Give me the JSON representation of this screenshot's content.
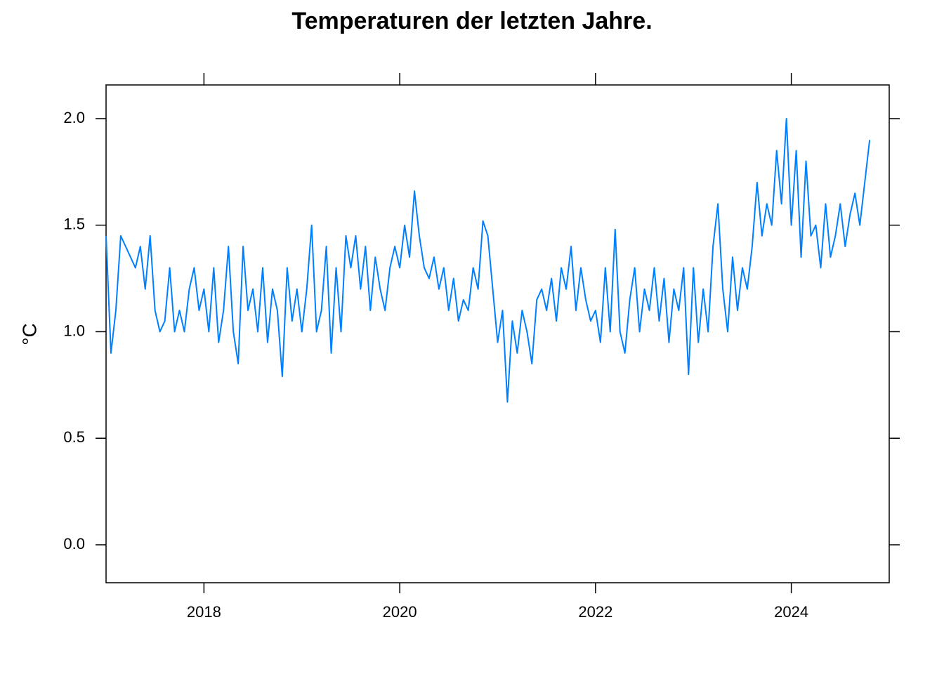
{
  "chart_data": {
    "type": "line",
    "title": "Temperaturen der letzten Jahre.",
    "y_label": "°C",
    "color": "#0080ff",
    "xlim": [
      2017,
      2025
    ],
    "xticks": [
      2018,
      2020,
      2022,
      2024
    ],
    "ylim": [
      -0.178,
      2.158
    ],
    "yticks": [
      {
        "value": 0,
        "label": "0.0"
      },
      0.5,
      {
        "value": 1,
        "label": "1.0"
      },
      1.5,
      {
        "value": 2,
        "label": "2.0"
      }
    ],
    "x": [
      2017.0,
      2017.05,
      2017.1,
      2017.15,
      2017.2,
      2017.25,
      2017.3,
      2017.35,
      2017.4,
      2017.45,
      2017.5,
      2017.55,
      2017.6,
      2017.65,
      2017.7,
      2017.75,
      2017.8,
      2017.85,
      2017.9,
      2017.95,
      2018.0,
      2018.05,
      2018.1,
      2018.15,
      2018.2,
      2018.25,
      2018.3,
      2018.35,
      2018.4,
      2018.45,
      2018.5,
      2018.55,
      2018.6,
      2018.65,
      2018.7,
      2018.75,
      2018.8,
      2018.85,
      2018.9,
      2018.95,
      2019.0,
      2019.05,
      2019.1,
      2019.15,
      2019.2,
      2019.25,
      2019.3,
      2019.35,
      2019.4,
      2019.45,
      2019.5,
      2019.55,
      2019.6,
      2019.65,
      2019.7,
      2019.75,
      2019.8,
      2019.85,
      2019.9,
      2019.95,
      2020.0,
      2020.05,
      2020.1,
      2020.15,
      2020.2,
      2020.25,
      2020.3,
      2020.35,
      2020.4,
      2020.45,
      2020.5,
      2020.55,
      2020.6,
      2020.65,
      2020.7,
      2020.75,
      2020.8,
      2020.85,
      2020.9,
      2020.95,
      2021.0,
      2021.05,
      2021.1,
      2021.15,
      2021.2,
      2021.25,
      2021.3,
      2021.35,
      2021.4,
      2021.45,
      2021.5,
      2021.55,
      2021.6,
      2021.65,
      2021.7,
      2021.75,
      2021.8,
      2021.85,
      2021.9,
      2021.95,
      2022.0,
      2022.05,
      2022.1,
      2022.15,
      2022.2,
      2022.25,
      2022.3,
      2022.35,
      2022.4,
      2022.45,
      2022.5,
      2022.55,
      2022.6,
      2022.65,
      2022.7,
      2022.75,
      2022.8,
      2022.85,
      2022.9,
      2022.95,
      2023.0,
      2023.05,
      2023.1,
      2023.15,
      2023.2,
      2023.25,
      2023.3,
      2023.35,
      2023.4,
      2023.45,
      2023.5,
      2023.55,
      2023.6,
      2023.65,
      2023.7,
      2023.75,
      2023.8,
      2023.85,
      2023.9,
      2023.95,
      2024.0,
      2024.05,
      2024.1,
      2024.15,
      2024.2,
      2024.25,
      2024.3,
      2024.35,
      2024.4,
      2024.45,
      2024.5,
      2024.55,
      2024.6,
      2024.65,
      2024.7,
      2024.75,
      2024.8
    ],
    "values": [
      1.45,
      0.9,
      1.1,
      1.45,
      1.4,
      1.35,
      1.3,
      1.4,
      1.2,
      1.45,
      1.1,
      1.0,
      1.05,
      1.3,
      1.0,
      1.1,
      1.0,
      1.2,
      1.3,
      1.1,
      1.2,
      1.0,
      1.3,
      0.95,
      1.1,
      1.4,
      1.0,
      0.85,
      1.4,
      1.1,
      1.2,
      1.0,
      1.3,
      0.95,
      1.2,
      1.1,
      0.79,
      1.3,
      1.05,
      1.2,
      1.0,
      1.2,
      1.5,
      1.0,
      1.1,
      1.4,
      0.9,
      1.3,
      1.0,
      1.45,
      1.3,
      1.45,
      1.2,
      1.4,
      1.1,
      1.35,
      1.2,
      1.1,
      1.3,
      1.4,
      1.3,
      1.5,
      1.35,
      1.66,
      1.45,
      1.3,
      1.25,
      1.35,
      1.2,
      1.3,
      1.1,
      1.25,
      1.05,
      1.15,
      1.1,
      1.3,
      1.2,
      1.52,
      1.45,
      1.2,
      0.95,
      1.1,
      0.67,
      1.05,
      0.9,
      1.1,
      1.0,
      0.85,
      1.15,
      1.2,
      1.1,
      1.25,
      1.05,
      1.3,
      1.2,
      1.4,
      1.1,
      1.3,
      1.15,
      1.05,
      1.1,
      0.95,
      1.3,
      1.0,
      1.48,
      1.0,
      0.9,
      1.15,
      1.3,
      1.0,
      1.2,
      1.1,
      1.3,
      1.05,
      1.25,
      0.95,
      1.2,
      1.1,
      1.3,
      0.8,
      1.3,
      0.95,
      1.2,
      1.0,
      1.4,
      1.6,
      1.2,
      1.0,
      1.35,
      1.1,
      1.3,
      1.2,
      1.4,
      1.7,
      1.45,
      1.6,
      1.5,
      1.85,
      1.6,
      2.0,
      1.5,
      1.85,
      1.35,
      1.8,
      1.45,
      1.5,
      1.3,
      1.6,
      1.35,
      1.45,
      1.6,
      1.4,
      1.55,
      1.65,
      1.5,
      1.7,
      1.9
    ]
  }
}
